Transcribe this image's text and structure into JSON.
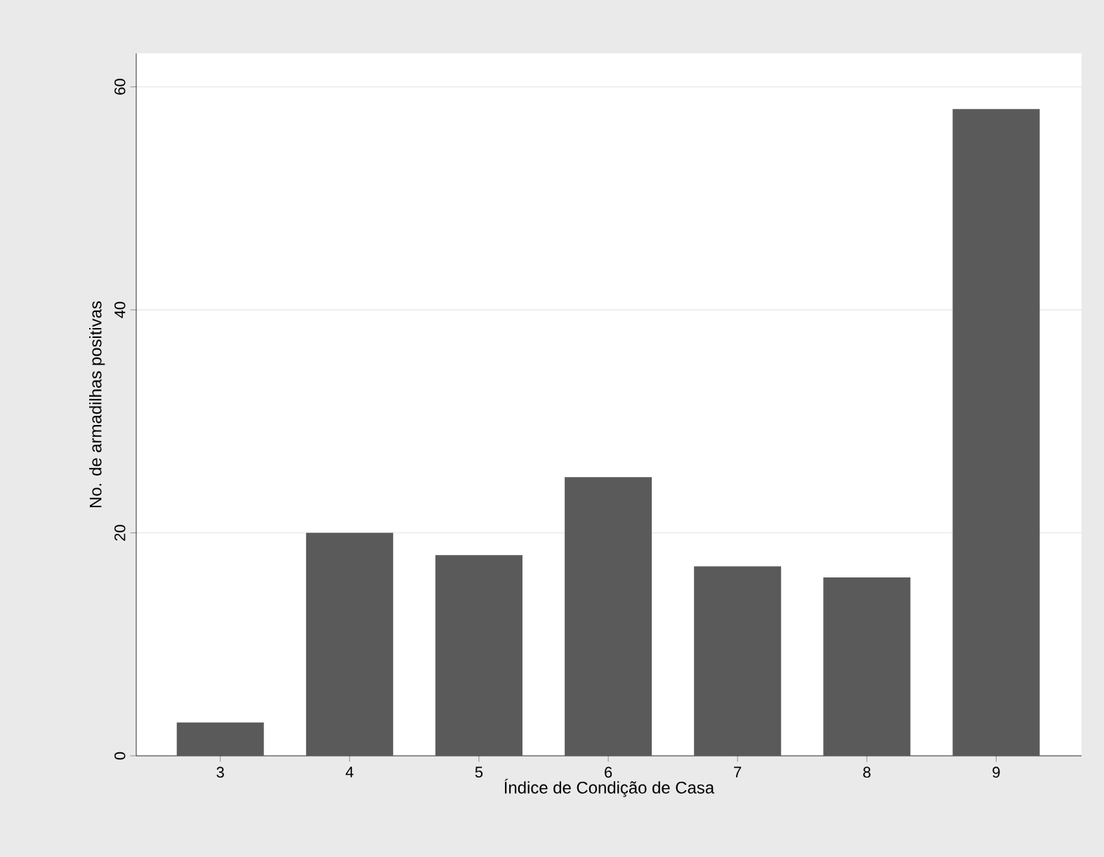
{
  "chart_data": {
    "type": "bar",
    "xlabel": "Índice de Condição de Casa",
    "ylabel": "No. de armadilhas positivas",
    "categories": [
      "3",
      "4",
      "5",
      "6",
      "7",
      "8",
      "9"
    ],
    "values": [
      3,
      20,
      18,
      25,
      17,
      16,
      58
    ],
    "color": "#5a5a5a",
    "ylim": [
      0,
      63
    ],
    "yticks": [
      0,
      20,
      40,
      60
    ],
    "grid": "y"
  }
}
